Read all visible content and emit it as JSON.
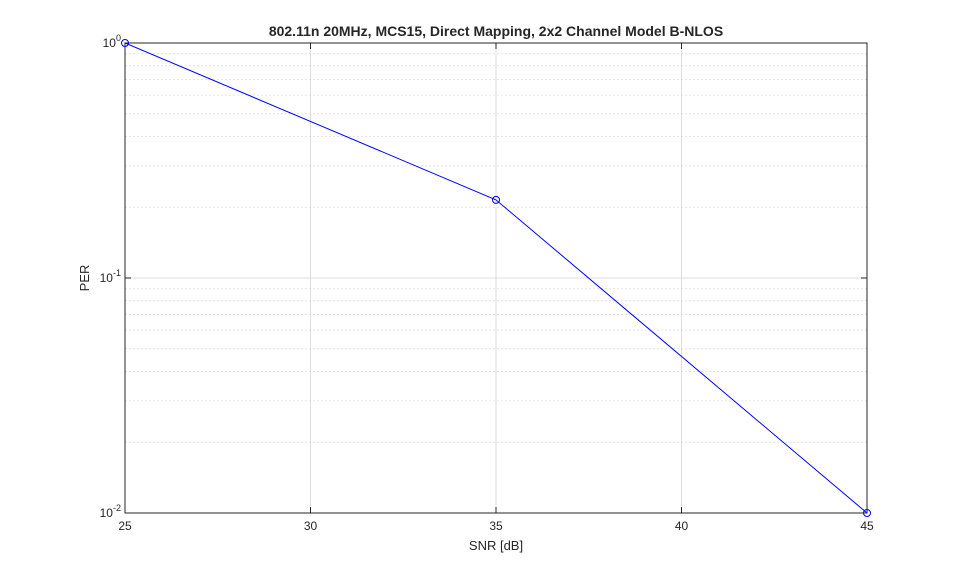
{
  "chart_data": {
    "type": "line",
    "title": "802.11n 20MHz, MCS15, Direct Mapping, 2x2 Channel Model B-NLOS",
    "xlabel": "SNR [dB]",
    "ylabel": "PER",
    "xlim": [
      25,
      45
    ],
    "ylim": [
      0.01,
      1
    ],
    "yscale": "log",
    "grid": true,
    "minor_grid": true,
    "x_ticks": [
      25,
      30,
      35,
      40,
      45
    ],
    "x_tick_labels": [
      "25",
      "30",
      "35",
      "40",
      "45"
    ],
    "y_ticks": [
      {
        "value": 1,
        "base": "10",
        "exp": "0"
      },
      {
        "value": 0.1,
        "base": "10",
        "exp": "-1"
      },
      {
        "value": 0.01,
        "base": "10",
        "exp": "-2"
      }
    ],
    "series": [
      {
        "color": "#0000ff",
        "marker": "circle",
        "x": [
          25,
          35,
          45
        ],
        "y": [
          1,
          0.215,
          0.01
        ]
      }
    ]
  }
}
